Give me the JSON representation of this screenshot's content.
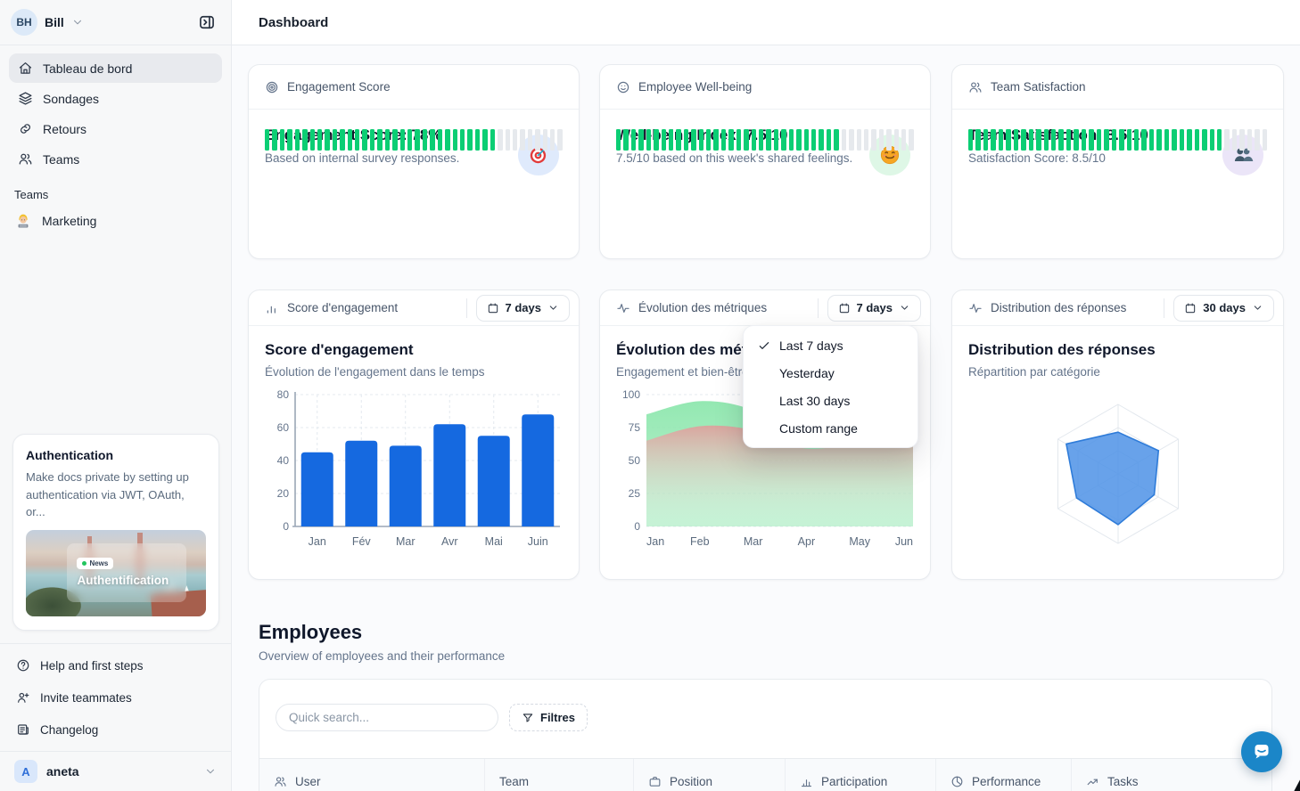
{
  "app": {
    "title": "Dashboard"
  },
  "sidebar": {
    "user": {
      "initials": "BH",
      "name": "Bill"
    },
    "nav": [
      {
        "label": "Tableau de bord",
        "icon": "home-icon",
        "active": true
      },
      {
        "label": "Sondages",
        "icon": "layers-icon",
        "active": false
      },
      {
        "label": "Retours",
        "icon": "link-icon",
        "active": false
      },
      {
        "label": "Teams",
        "icon": "users-icon",
        "active": false
      }
    ],
    "teams_section": {
      "label": "Teams",
      "items": [
        {
          "label": "Marketing",
          "icon": "technologist-emoji"
        }
      ]
    },
    "promo_card": {
      "title": "Authentication",
      "body": "Make docs private by setting up authentication via JWT, OAuth, or...",
      "image_badge": "News",
      "image_title": "Authentification"
    },
    "footer_nav": [
      {
        "label": "Help and first steps",
        "icon": "help-circle-icon"
      },
      {
        "label": "Invite teammates",
        "icon": "user-plus-icon"
      },
      {
        "label": "Changelog",
        "icon": "changelog-icon"
      }
    ],
    "workspace": {
      "initial": "A",
      "name": "aneta"
    }
  },
  "stat_cards": [
    {
      "header": "Engagement Score",
      "header_icon": "target-icon",
      "title": "Engagement Score: 78%",
      "subtitle": "Based on internal survey responses.",
      "emoji": "target-emoji",
      "emoji_bg": "#dfeafc",
      "progress": 0.78
    },
    {
      "header": "Employee Well-being",
      "header_icon": "smile-icon",
      "title": "Well-being Index: 7.5/10",
      "subtitle": "7.5/10 based on this week's shared feelings.",
      "emoji": "smiling-face-emoji",
      "emoji_bg": "#def7e6",
      "progress": 0.75
    },
    {
      "header": "Team Satisfaction",
      "header_icon": "users-icon",
      "title": "Team Satisfaction: 8.5/10",
      "subtitle": "Satisfaction Score: 8.5/10",
      "emoji": "busts-emoji",
      "emoji_bg": "#ebe5f8",
      "progress": 0.85
    }
  ],
  "progress": {
    "segments": 40,
    "on_color": "#0bce74",
    "off_color": "#e6e9ed"
  },
  "chart_data": [
    {
      "type": "bar",
      "header_label": "Score d'engagement",
      "header_icon": "bar-chart-icon",
      "range_label": "7 days",
      "title": "Score d'engagement",
      "subtitle": "Évolution de l'engagement dans le temps",
      "categories": [
        "Jan",
        "Fév",
        "Mar",
        "Avr",
        "Mai",
        "Juin"
      ],
      "values": [
        45,
        52,
        49,
        62,
        55,
        68
      ],
      "ylim": [
        0,
        80
      ],
      "yticks": [
        0,
        20,
        40,
        60,
        80
      ],
      "bar_color": "#1569e0",
      "grid": "dashed"
    },
    {
      "type": "area",
      "header_label": "Évolution des métriques",
      "header_icon": "activity-icon",
      "range_label": "7 days",
      "title": "Évolution des métriques",
      "subtitle": "Engagement et bien-être",
      "x": [
        "Jan",
        "Feb",
        "Mar",
        "Apr",
        "May",
        "Jun"
      ],
      "series": [
        {
          "name": "engagement",
          "color": "#8ee7ae",
          "values": [
            85,
            95,
            88,
            63,
            67,
            71
          ]
        },
        {
          "name": "bien-être",
          "color": "#e49a9a",
          "values": [
            65,
            76,
            73,
            59,
            64,
            68
          ]
        }
      ],
      "ylim": [
        0,
        100
      ],
      "yticks": [
        0,
        25,
        50,
        75,
        100
      ],
      "grid": "dashed"
    },
    {
      "type": "radar",
      "header_label": "Distribution des réponses",
      "header_icon": "activity-icon",
      "range_label": "30 days",
      "title": "Distribution des réponses",
      "subtitle": "Répartition par catégorie",
      "axes": 6,
      "values": [
        60,
        67,
        60,
        73,
        69,
        86
      ],
      "max": 100,
      "fill_color": "#4e92e6",
      "stroke_color": "#2f7cd9",
      "ring_color": "#e3e8ee"
    }
  ],
  "dropdown_menu": {
    "items": [
      {
        "label": "Last 7 days",
        "checked": true
      },
      {
        "label": "Yesterday",
        "checked": false
      },
      {
        "label": "Last 30 days",
        "checked": false
      },
      {
        "label": "Custom range",
        "checked": false
      }
    ]
  },
  "employees": {
    "title": "Employees",
    "subtitle": "Overview of employees and their performance",
    "search_placeholder": "Quick search...",
    "filters_label": "Filtres",
    "columns": [
      {
        "label": "User",
        "icon": "users-icon"
      },
      {
        "label": "Team",
        "icon": ""
      },
      {
        "label": "Position",
        "icon": "briefcase-icon"
      },
      {
        "label": "Participation",
        "icon": "bar-chart-icon"
      },
      {
        "label": "Performance",
        "icon": "pie-chart-icon"
      },
      {
        "label": "Tasks",
        "icon": "trending-up-icon"
      }
    ]
  },
  "chat": {
    "color": "#1b86c8"
  }
}
